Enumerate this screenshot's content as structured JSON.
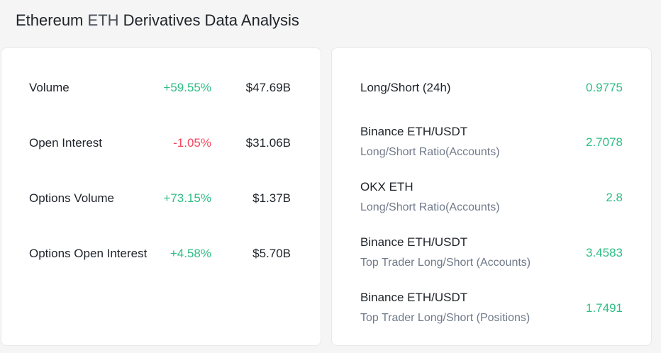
{
  "page": {
    "title_prefix": "Ethereum",
    "title_coin": "ETH",
    "title_suffix": "Derivatives Data Analysis"
  },
  "colors": {
    "positive": "#2ebd85",
    "negative": "#f6465d",
    "text": "#1e2329",
    "muted": "#707a8a"
  },
  "metrics": [
    {
      "label": "Volume",
      "change": "+59.55%",
      "direction": "up",
      "amount": "$47.69B"
    },
    {
      "label": "Open Interest",
      "change": "-1.05%",
      "direction": "down",
      "amount": "$31.06B"
    },
    {
      "label": "Options Volume",
      "change": "+73.15%",
      "direction": "up",
      "amount": "$1.37B"
    },
    {
      "label": "Options Open Interest",
      "change": "+4.58%",
      "direction": "up",
      "amount": "$5.70B"
    }
  ],
  "ratios": [
    {
      "title": "Long/Short (24h)",
      "subtitle": "",
      "value": "0.9775"
    },
    {
      "title": "Binance ETH/USDT",
      "subtitle": "Long/Short Ratio(Accounts)",
      "value": "2.7078"
    },
    {
      "title": "OKX ETH",
      "subtitle": "Long/Short Ratio(Accounts)",
      "value": "2.8"
    },
    {
      "title": "Binance ETH/USDT",
      "subtitle": "Top Trader Long/Short (Accounts)",
      "value": "3.4583"
    },
    {
      "title": "Binance ETH/USDT",
      "subtitle": "Top Trader Long/Short (Positions)",
      "value": "1.7491"
    }
  ]
}
